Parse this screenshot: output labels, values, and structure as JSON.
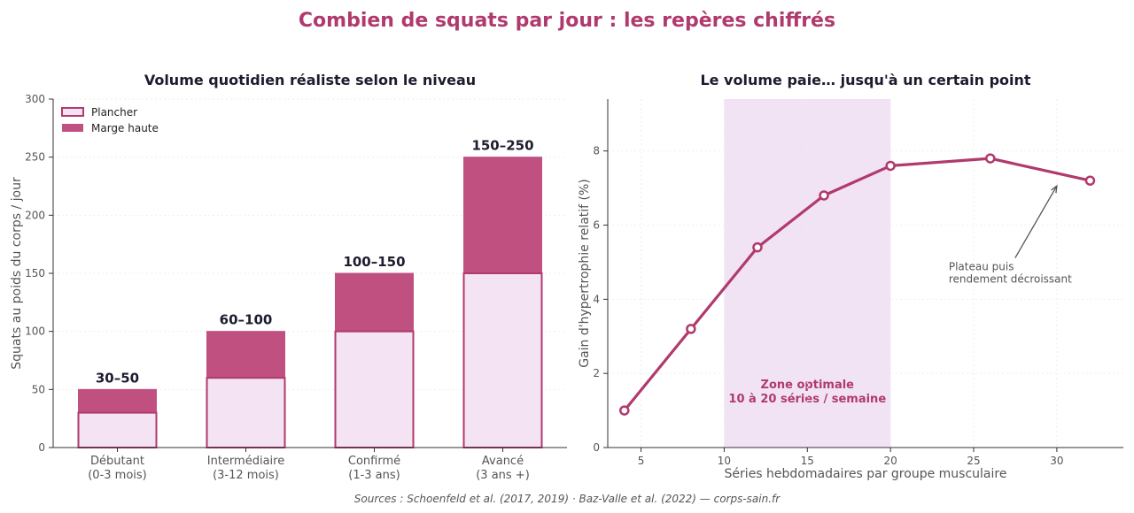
{
  "suptitle": "Combien de squats par jour : les repères chiffrés",
  "source": "Sources : Schoenfeld et al. (2017, 2019) · Baz-Valle et al. (2022) — corps-sain.fr",
  "colors": {
    "title": "#b03a6e",
    "panel_title": "#1c1c2e",
    "floor_fill": "#f4e3f3",
    "floor_stroke": "#b03a6e",
    "top_fill": "#c05080",
    "line": "#b03a6e",
    "shade": "#f1e2f4",
    "axis_text": "#555555",
    "grid": "#eeeeee"
  },
  "chart_data": [
    {
      "type": "bar",
      "title": "Volume quotidien réaliste selon le niveau",
      "ylabel": "Squats au poids du corps / jour",
      "ylim": [
        0,
        300
      ],
      "yticks": [
        "0",
        "50",
        "100",
        "150",
        "200",
        "250",
        "300"
      ],
      "categories": [
        "Débutant\n(0-3 mois)",
        "Intermédiaire\n(3-12 mois)",
        "Confirmé\n(1-3 ans)",
        "Avancé\n(3 ans +)"
      ],
      "series": [
        {
          "name": "Plancher",
          "values": [
            30,
            60,
            100,
            150
          ]
        },
        {
          "name": "Marge haute",
          "values": [
            20,
            40,
            50,
            100
          ]
        }
      ],
      "data_labels": [
        "30–50",
        "60–100",
        "100–150",
        "150–250"
      ],
      "legend_position": "top-left",
      "grid": true
    },
    {
      "type": "line",
      "title": "Le volume paie… jusqu'à un certain point",
      "xlabel": "Séries hebdomadaires par groupe musculaire",
      "ylabel": "Gain d'hypertrophie relatif (%)",
      "xlim": [
        3,
        34
      ],
      "ylim": [
        0,
        9.4
      ],
      "xticks": [
        "5",
        "10",
        "15",
        "20",
        "25",
        "30"
      ],
      "yticks": [
        "0",
        "2",
        "4",
        "6",
        "8"
      ],
      "x": [
        4,
        8,
        12,
        16,
        20,
        26,
        32
      ],
      "y": [
        1.0,
        3.2,
        5.4,
        6.8,
        7.6,
        7.8,
        7.2
      ],
      "shaded_range": [
        10,
        20
      ],
      "shade_label": [
        "Zone optimale",
        "10 à 20 séries / semaine"
      ],
      "annotation": {
        "text": [
          "Plateau puis",
          "rendement décroissant"
        ],
        "x": 23.5,
        "y": 4.4,
        "arrow_to": [
          30,
          7.2
        ]
      },
      "grid": true
    }
  ]
}
